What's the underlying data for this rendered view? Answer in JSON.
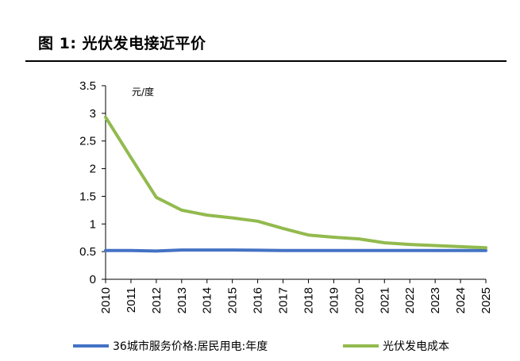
{
  "figure_title": "图 1:  光伏发电接近平价",
  "chart_data": {
    "type": "line",
    "x": [
      "2010",
      "2011",
      "2012",
      "2013",
      "2014",
      "2015",
      "2016",
      "2017",
      "2018",
      "2019",
      "2020",
      "2021",
      "2022",
      "2023",
      "2024",
      "2025"
    ],
    "y_unit_label": "元/度",
    "ylim": [
      0,
      3.5
    ],
    "yticks": [
      "0",
      "0.5",
      "1",
      "1.5",
      "2",
      "2.5",
      "3",
      "3.5"
    ],
    "grid": false,
    "legend_position": "bottom",
    "series": [
      {
        "name": "36城市服务价格:居民用电:年度",
        "color": "#4472C4",
        "values": [
          0.52,
          0.52,
          0.51,
          0.53,
          0.53,
          0.53,
          0.525,
          0.52,
          0.52,
          0.52,
          0.52,
          0.52,
          0.52,
          0.52,
          0.52,
          0.52
        ]
      },
      {
        "name": "光伏发电成本",
        "color": "#92BA4E",
        "values": [
          2.93,
          2.2,
          1.48,
          1.25,
          1.16,
          1.11,
          1.05,
          0.92,
          0.8,
          0.76,
          0.73,
          0.66,
          0.63,
          0.61,
          0.59,
          0.57
        ]
      }
    ]
  }
}
